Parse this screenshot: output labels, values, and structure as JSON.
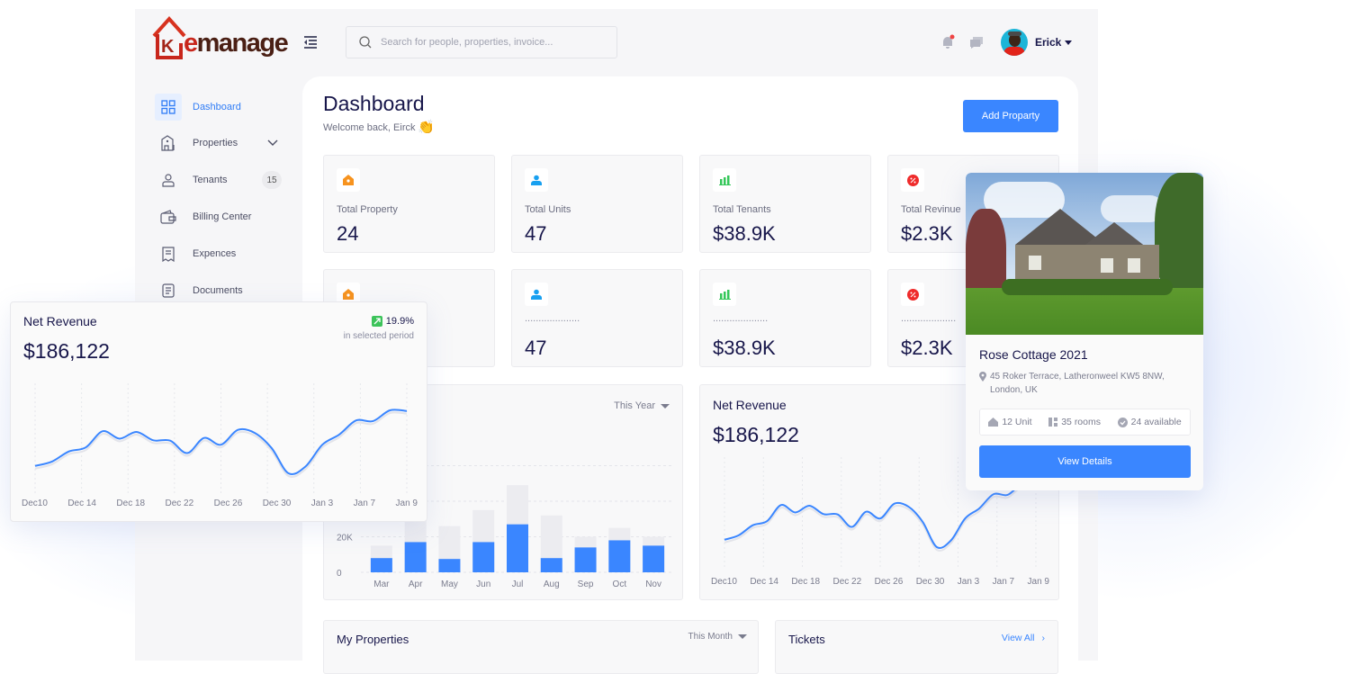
{
  "brand": {
    "name_prefix": "k",
    "name_accent": "e",
    "name_rest": "manage"
  },
  "header": {
    "search_placeholder": "Search for people, properties, invoice...",
    "user_name": "Erick",
    "notification_dot_color": "#ef4444"
  },
  "sidebar": {
    "items": [
      {
        "label": "Dashboard",
        "icon": "grid-icon",
        "active": true
      },
      {
        "label": "Properties",
        "icon": "building-icon",
        "expandable": true
      },
      {
        "label": "Tenants",
        "icon": "user-icon",
        "badge": "15"
      },
      {
        "label": "Billing Center",
        "icon": "wallet-icon"
      },
      {
        "label": "Expences",
        "icon": "receipt-icon"
      },
      {
        "label": "Documents",
        "icon": "document-icon"
      }
    ]
  },
  "page": {
    "title": "Dashboard",
    "welcome": "Welcome back, Eirck",
    "wave_emoji": "👏",
    "add_button": "Add Proparty"
  },
  "stats": [
    {
      "label": "Total Property",
      "value": "24",
      "icon": "home-icon",
      "color": "#f7931e"
    },
    {
      "label": "Total Units",
      "value": "47",
      "icon": "person-icon",
      "color": "#18a0f0"
    },
    {
      "label": "Total Tenants",
      "value": "$38.9K",
      "icon": "bar-chart-icon",
      "color": "#34c759"
    },
    {
      "label": "Total Revinue",
      "value": "$2.3K",
      "icon": "percent-icon",
      "color": "#ef2b2b"
    },
    {
      "label": "",
      "value": "",
      "icon": "home-icon",
      "color": "#f7931e"
    },
    {
      "label": "....................",
      "value": "47",
      "icon": "person-icon",
      "color": "#18a0f0"
    },
    {
      "label": "....................",
      "value": "$38.9K",
      "icon": "bar-chart-icon",
      "color": "#34c759"
    },
    {
      "label": "....................",
      "value": "$2.3K",
      "icon": "percent-icon",
      "color": "#ef2b2b"
    }
  ],
  "bar_chart": {
    "period": "This Year",
    "y_tick_labels": [
      "0",
      "20K"
    ],
    "months": [
      "Mar",
      "Apr",
      "May",
      "Jun",
      "Jul",
      "Aug",
      "Sep",
      "Oct",
      "Nov"
    ],
    "blue_values": [
      8000,
      17000,
      7500,
      17000,
      27000,
      8000,
      14000,
      18000,
      15000
    ],
    "gray_values": [
      15000,
      30000,
      26000,
      35000,
      49000,
      32000,
      20000,
      25000,
      20000
    ],
    "colors": {
      "blue": "#3a86ff",
      "gray": "#ececf0"
    }
  },
  "net_revenue": {
    "title": "Net Revenue",
    "amount": "$186,122",
    "change": "19.9%",
    "change_caption": "in selected period",
    "x_labels": [
      "Dec10",
      "Dec 14",
      "Dec 18",
      "Dec 22",
      "Dec 26",
      "Dec 30",
      "Jan 3",
      "Jan 7",
      "Jan 9"
    ],
    "trend": [
      37,
      50,
      80,
      92,
      140,
      118,
      138,
      113,
      112,
      75,
      120,
      100,
      144,
      135,
      90,
      15,
      35,
      100,
      130,
      172,
      170,
      202,
      200
    ],
    "line_color": "#3a86ff"
  },
  "property": {
    "name": "Rose Cottage 2021",
    "address": "45 Roker Terrace, Latheronweel KW5 8NW, London, UK",
    "units": "12 Unit",
    "rooms": "35 rooms",
    "available": "24 available",
    "button": "View Details"
  },
  "bottom": {
    "my_properties": "My Properties",
    "period": "This Month",
    "tickets": "Tickets",
    "view_all": "View All"
  }
}
